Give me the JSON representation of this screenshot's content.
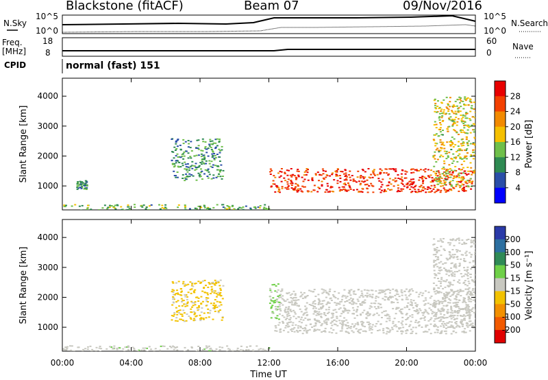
{
  "header": {
    "station": "Blackstone (fitACF)",
    "beam": "Beam 07",
    "date": "09/Nov/2016"
  },
  "noise_panel": {
    "left_label": "N.Sky",
    "right_label": "N.Search",
    "left_ticks": [
      "10^5",
      "10^0"
    ],
    "right_ticks": [
      "10^5",
      "10^0"
    ]
  },
  "freq_panel": {
    "left_label_line1": "Freq.",
    "left_label_line2": "[MHz]",
    "right_label": "Nave",
    "left_ticks": [
      "18",
      "8"
    ],
    "right_ticks": [
      "60",
      "0"
    ]
  },
  "cpid": {
    "label": "CPID",
    "value": "normal (fast) 151"
  },
  "colors": {
    "power_scale": [
      "#0000ff",
      "#2a4ea8",
      "#2e8a52",
      "#6fbf4a",
      "#f5c000",
      "#f28a00",
      "#f34000",
      "#e80000"
    ],
    "velocity_scale": [
      "#2a3aa8",
      "#2c6fa0",
      "#2f8a56",
      "#6fd048",
      "#c8c8c0",
      "#f2c200",
      "#f29000",
      "#f25a00",
      "#e00000"
    ]
  },
  "chart_data": [
    {
      "type": "heatmap",
      "title": "Power",
      "xlabel": "",
      "ylabel": "Slant Range [km]",
      "xlim": [
        "00:00",
        "24:00"
      ],
      "ylim": [
        200,
        4600
      ],
      "y_ticks": [
        1000,
        2000,
        3000,
        4000
      ],
      "x_ticks": [
        "00:00",
        "04:00",
        "08:00",
        "12:00",
        "16:00",
        "20:00",
        "00:00"
      ],
      "colorbar": {
        "label": "Power [dB]",
        "ticks": [
          "4",
          "8",
          "12",
          "16",
          "20",
          "24",
          "28"
        ],
        "range": [
          0,
          30
        ]
      },
      "features": [
        {
          "name": "ground scatter band",
          "x_start": 0.0,
          "x_end": 12.0,
          "range_km": [
            200,
            400
          ],
          "level_db": 12
        },
        {
          "name": "morning patch",
          "x_start": 0.8,
          "x_end": 1.4,
          "range_km": [
            900,
            1200
          ],
          "level_db": 10
        },
        {
          "name": "arc",
          "x_start": 6.3,
          "x_end": 9.3,
          "range_km": [
            1200,
            2600
          ],
          "level_db": 10
        },
        {
          "name": "main band",
          "x_start": 12.0,
          "x_end": 23.8,
          "range_km": [
            800,
            1600
          ],
          "level_db": 26
        },
        {
          "name": "rising edge",
          "x_start": 21.5,
          "x_end": 24.0,
          "range_km": [
            1000,
            4000
          ],
          "level_db": 16
        }
      ]
    },
    {
      "type": "heatmap",
      "title": "Velocity",
      "xlabel": "Time UT",
      "ylabel": "Slant Range [km]",
      "xlim": [
        "00:00",
        "24:00"
      ],
      "ylim": [
        200,
        4600
      ],
      "y_ticks": [
        1000,
        2000,
        3000,
        4000
      ],
      "x_ticks": [
        "00:00",
        "04:00",
        "08:00",
        "12:00",
        "16:00",
        "20:00",
        "00:00"
      ],
      "colorbar": {
        "label": "Velocity [m s⁻¹]",
        "ticks": [
          "200",
          "100",
          "50",
          "15",
          "-15",
          "-50",
          "-100",
          "-200"
        ],
        "range": [
          -250,
          250
        ]
      },
      "features": [
        {
          "name": "ground scatter band",
          "x_start": 0.0,
          "x_end": 12.0,
          "range_km": [
            200,
            400
          ],
          "velocity": 10
        },
        {
          "name": "arc",
          "x_start": 6.3,
          "x_end": 9.3,
          "range_km": [
            1200,
            2600
          ],
          "velocity": -40
        },
        {
          "name": "green onset",
          "x_start": 12.0,
          "x_end": 12.6,
          "range_km": [
            1200,
            2500
          ],
          "velocity": 40
        },
        {
          "name": "main band (ground)",
          "x_start": 12.3,
          "x_end": 23.8,
          "range_km": [
            800,
            2300
          ],
          "velocity": 0
        },
        {
          "name": "rising edge",
          "x_start": 21.5,
          "x_end": 24.0,
          "range_km": [
            1000,
            4000
          ],
          "velocity": 0
        }
      ]
    }
  ]
}
